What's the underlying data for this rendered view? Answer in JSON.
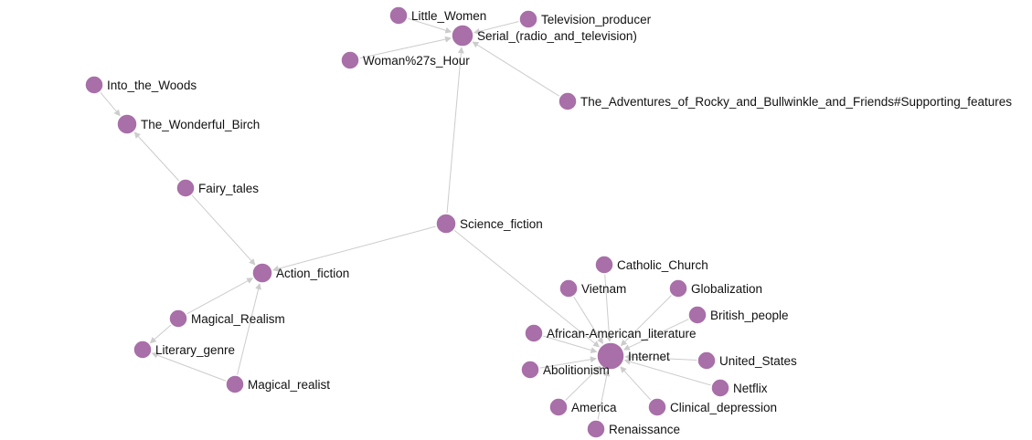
{
  "colors": {
    "node": "#a86fa8",
    "edge": "#cccccc",
    "label": "#111111",
    "background": "#ffffff"
  },
  "graph": {
    "nodes": [
      {
        "id": "little_women",
        "label": "Little_Women"
      },
      {
        "id": "television_producer",
        "label": "Television_producer"
      },
      {
        "id": "serial",
        "label": "Serial_(radio_and_television)"
      },
      {
        "id": "womans_hour",
        "label": "Woman%27s_Hour"
      },
      {
        "id": "rocky_bullwinkle",
        "label": "The_Adventures_of_Rocky_and_Bullwinkle_and_Friends#Supporting_features"
      },
      {
        "id": "into_the_woods",
        "label": "Into_the_Woods"
      },
      {
        "id": "wonderful_birch",
        "label": "The_Wonderful_Birch"
      },
      {
        "id": "fairy_tales",
        "label": "Fairy_tales"
      },
      {
        "id": "science_fiction",
        "label": "Science_fiction"
      },
      {
        "id": "action_fiction",
        "label": "Action_fiction"
      },
      {
        "id": "catholic_church",
        "label": "Catholic_Church"
      },
      {
        "id": "vietnam",
        "label": "Vietnam"
      },
      {
        "id": "globalization",
        "label": "Globalization"
      },
      {
        "id": "british_people",
        "label": "British_people"
      },
      {
        "id": "african_american_literature",
        "label": "African-American_literature"
      },
      {
        "id": "magical_realism",
        "label": "Magical_Realism"
      },
      {
        "id": "literary_genre",
        "label": "Literary_genre"
      },
      {
        "id": "internet",
        "label": "Internet"
      },
      {
        "id": "united_states",
        "label": "United_States"
      },
      {
        "id": "abolitionism",
        "label": "Abolitionism"
      },
      {
        "id": "netflix",
        "label": "Netflix"
      },
      {
        "id": "magical_realist",
        "label": "Magical_realist"
      },
      {
        "id": "america",
        "label": "America"
      },
      {
        "id": "clinical_depression",
        "label": "Clinical_depression"
      },
      {
        "id": "renaissance",
        "label": "Renaissance"
      }
    ],
    "edges": [
      {
        "source": "little_women",
        "target": "serial"
      },
      {
        "source": "television_producer",
        "target": "serial"
      },
      {
        "source": "womans_hour",
        "target": "serial"
      },
      {
        "source": "rocky_bullwinkle",
        "target": "serial"
      },
      {
        "source": "science_fiction",
        "target": "serial"
      },
      {
        "source": "into_the_woods",
        "target": "wonderful_birch"
      },
      {
        "source": "fairy_tales",
        "target": "wonderful_birch"
      },
      {
        "source": "fairy_tales",
        "target": "action_fiction"
      },
      {
        "source": "science_fiction",
        "target": "action_fiction"
      },
      {
        "source": "science_fiction",
        "target": "internet"
      },
      {
        "source": "magical_realism",
        "target": "action_fiction"
      },
      {
        "source": "magical_realism",
        "target": "literary_genre"
      },
      {
        "source": "magical_realist",
        "target": "literary_genre"
      },
      {
        "source": "magical_realist",
        "target": "action_fiction"
      },
      {
        "source": "catholic_church",
        "target": "internet"
      },
      {
        "source": "vietnam",
        "target": "internet"
      },
      {
        "source": "globalization",
        "target": "internet"
      },
      {
        "source": "british_people",
        "target": "internet"
      },
      {
        "source": "african_american_literature",
        "target": "internet"
      },
      {
        "source": "united_states",
        "target": "internet"
      },
      {
        "source": "abolitionism",
        "target": "internet"
      },
      {
        "source": "netflix",
        "target": "internet"
      },
      {
        "source": "america",
        "target": "internet"
      },
      {
        "source": "clinical_depression",
        "target": "internet"
      },
      {
        "source": "renaissance",
        "target": "internet"
      }
    ]
  }
}
